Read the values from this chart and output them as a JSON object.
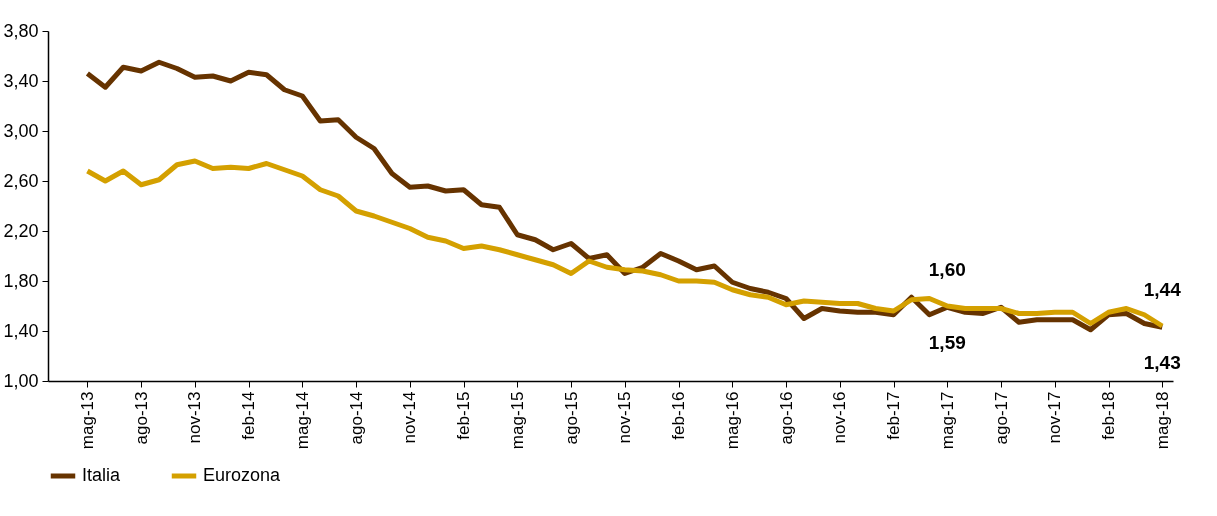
{
  "chart_data": {
    "type": "line",
    "categories": [
      "mag-13",
      null,
      null,
      "ago-13",
      null,
      null,
      "nov-13",
      null,
      null,
      "feb-14",
      null,
      null,
      "mag-14",
      null,
      null,
      "ago-14",
      null,
      null,
      "nov-14",
      null,
      null,
      "feb-15",
      null,
      null,
      "mag-15",
      null,
      null,
      "ago-15",
      null,
      null,
      "nov-15",
      null,
      null,
      "feb-16",
      null,
      null,
      "mag-16",
      null,
      null,
      "ago-16",
      null,
      null,
      "nov-16",
      null,
      null,
      "feb-17",
      null,
      null,
      "mag-17",
      null,
      null,
      "ago-17",
      null,
      null,
      "nov-17",
      null,
      null,
      "feb-18",
      null,
      null,
      "mag-18"
    ],
    "series": [
      {
        "name": "Italia",
        "color": "#663300",
        "values": [
          3.46,
          3.35,
          3.51,
          3.48,
          3.55,
          3.5,
          3.43,
          3.44,
          3.4,
          3.47,
          3.45,
          3.33,
          3.28,
          3.08,
          3.09,
          2.95,
          2.86,
          2.66,
          2.55,
          2.56,
          2.52,
          2.53,
          2.41,
          2.39,
          2.17,
          2.13,
          2.05,
          2.1,
          1.98,
          2.01,
          1.86,
          1.91,
          2.02,
          1.96,
          1.89,
          1.92,
          1.79,
          1.74,
          1.71,
          1.66,
          1.5,
          1.58,
          1.56,
          1.55,
          1.55,
          1.53,
          1.67,
          1.53,
          1.59,
          1.55,
          1.54,
          1.59,
          1.47,
          1.49,
          1.49,
          1.49,
          1.41,
          1.53,
          1.54,
          1.46,
          1.43
        ],
        "value_labels": [
          null,
          null,
          null,
          null,
          null,
          null,
          null,
          null,
          null,
          null,
          null,
          null,
          null,
          null,
          null,
          null,
          null,
          null,
          null,
          null,
          null,
          null,
          null,
          null,
          null,
          null,
          null,
          null,
          null,
          null,
          null,
          null,
          null,
          null,
          null,
          null,
          null,
          null,
          null,
          null,
          null,
          null,
          null,
          null,
          null,
          null,
          null,
          null,
          "1,59",
          null,
          null,
          null,
          null,
          null,
          null,
          null,
          null,
          null,
          null,
          null,
          "1,43"
        ]
      },
      {
        "name": "Eurozona",
        "color": "#d4a000",
        "values": [
          2.68,
          2.6,
          2.68,
          2.57,
          2.61,
          2.73,
          2.76,
          2.7,
          2.71,
          2.7,
          2.74,
          2.69,
          2.64,
          2.53,
          2.48,
          2.36,
          2.32,
          2.27,
          2.22,
          2.15,
          2.12,
          2.06,
          2.08,
          2.05,
          2.01,
          1.97,
          1.93,
          1.86,
          1.96,
          1.91,
          1.89,
          1.88,
          1.85,
          1.8,
          1.8,
          1.79,
          1.73,
          1.69,
          1.67,
          1.61,
          1.64,
          1.63,
          1.62,
          1.62,
          1.58,
          1.56,
          1.65,
          1.66,
          1.6,
          1.58,
          1.58,
          1.58,
          1.54,
          1.54,
          1.55,
          1.55,
          1.46,
          1.55,
          1.58,
          1.53,
          1.44
        ],
        "value_labels": [
          null,
          null,
          null,
          null,
          null,
          null,
          null,
          null,
          null,
          null,
          null,
          null,
          null,
          null,
          null,
          null,
          null,
          null,
          null,
          null,
          null,
          null,
          null,
          null,
          null,
          null,
          null,
          null,
          null,
          null,
          null,
          null,
          null,
          null,
          null,
          null,
          null,
          null,
          null,
          null,
          null,
          null,
          null,
          null,
          null,
          null,
          null,
          null,
          "1,60",
          null,
          null,
          null,
          null,
          null,
          null,
          null,
          null,
          null,
          null,
          null,
          "1,44"
        ]
      }
    ],
    "ylim": [
      1.0,
      3.8
    ],
    "yticks": [
      {
        "value": 1.0,
        "label": "1,00"
      },
      {
        "value": 1.4,
        "label": "1,40"
      },
      {
        "value": 1.8,
        "label": "1,80"
      },
      {
        "value": 2.2,
        "label": "2,20"
      },
      {
        "value": 2.6,
        "label": "2,60"
      },
      {
        "value": 3.0,
        "label": "3,00"
      },
      {
        "value": 3.4,
        "label": "3,40"
      },
      {
        "value": 3.8,
        "label": "3,80"
      }
    ],
    "legend": "bottom"
  }
}
